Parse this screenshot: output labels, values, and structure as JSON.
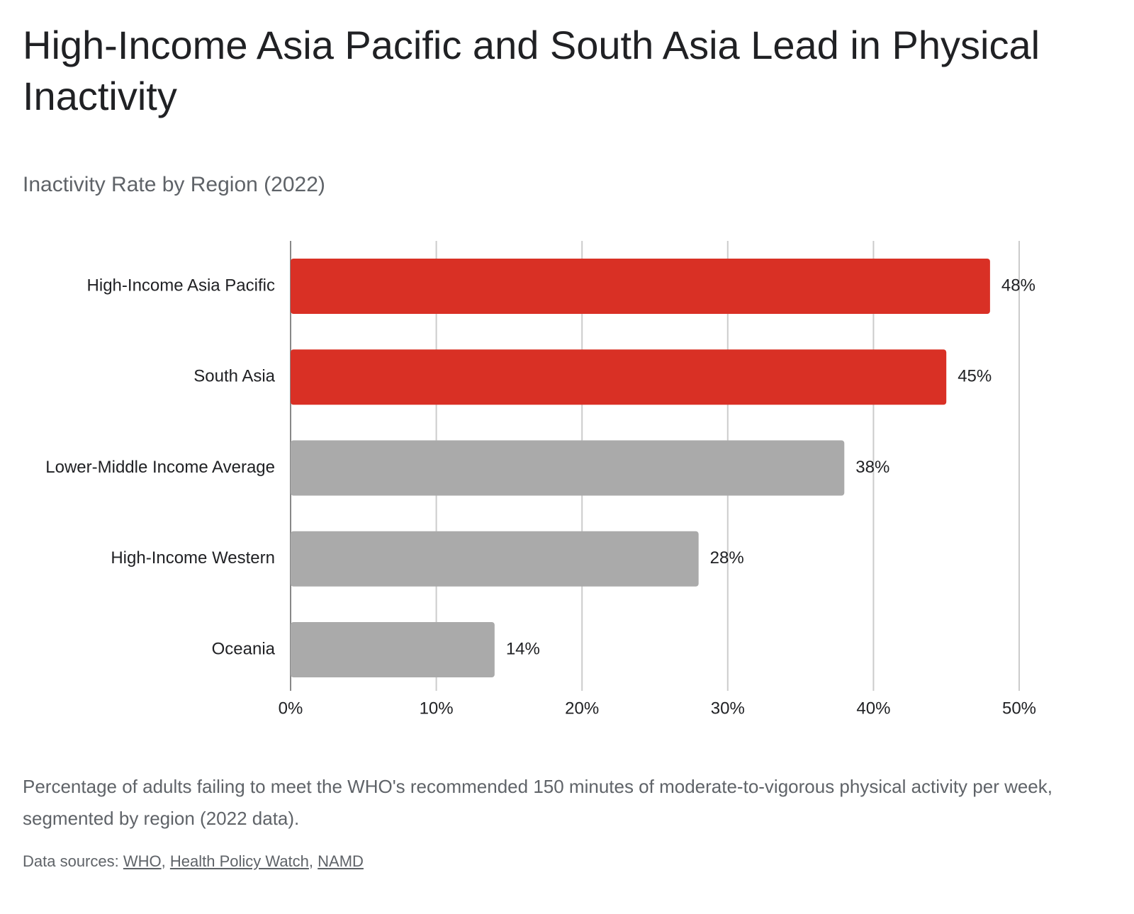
{
  "chart_data": {
    "type": "bar",
    "orientation": "horizontal",
    "title": "High-Income Asia Pacific and South Asia Lead in Physical Inactivity",
    "subtitle": "Inactivity Rate by Region (2022)",
    "categories": [
      "High-Income Asia Pacific",
      "South Asia",
      "Lower-Middle Income Average",
      "High-Income Western",
      "Oceania"
    ],
    "values": [
      48,
      45,
      38,
      28,
      14
    ],
    "value_labels": [
      "48%",
      "45%",
      "38%",
      "28%",
      "14%"
    ],
    "colors": [
      "#d93025",
      "#d93025",
      "#aaaaaa",
      "#aaaaaa",
      "#aaaaaa"
    ],
    "xlim": [
      0,
      50
    ],
    "xticks": [
      {
        "value": 0,
        "label": "0%"
      },
      {
        "value": 10,
        "label": "10%"
      },
      {
        "value": 20,
        "label": "20%"
      },
      {
        "value": 30,
        "label": "30%"
      },
      {
        "value": 40,
        "label": "40%"
      },
      {
        "value": 50,
        "label": "50%"
      }
    ],
    "grid": true,
    "caption": "Percentage of adults failing to meet the WHO's recommended 150 minutes of moderate-to-vigorous physical activity per week, segmented by region (2022 data).",
    "sources_label": "Data sources:",
    "source_separator": ",",
    "sources": [
      "WHO",
      "Health Policy Watch",
      "NAMD"
    ]
  }
}
